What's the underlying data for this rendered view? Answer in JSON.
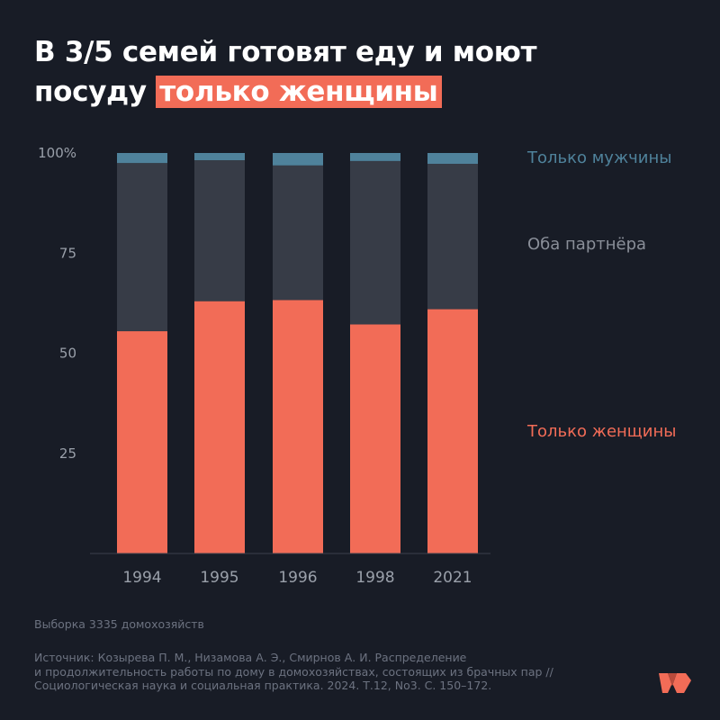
{
  "title": {
    "line1": "В 3/5 семей готовят еду и моют",
    "line2_prefix": "посуду ",
    "highlight": "только женщины"
  },
  "chart_data": {
    "type": "bar",
    "stacked": true,
    "categories": [
      "1994",
      "1995",
      "1996",
      "1998",
      "2021"
    ],
    "series": [
      {
        "name": "Только женщины",
        "color": "#f26c57",
        "values": [
          55.5,
          63,
          63.3,
          57.2,
          61
        ]
      },
      {
        "name": "Оба партнёра",
        "color": "#373c47",
        "values": [
          42,
          35.2,
          33.6,
          40.8,
          36.3
        ]
      },
      {
        "name": "Только мужчины",
        "color": "#4f829b",
        "values": [
          2.5,
          1.8,
          3.1,
          2,
          2.7
        ]
      }
    ],
    "yticks": [
      "25",
      "50",
      "75",
      "100%"
    ],
    "ylim": [
      0,
      100
    ],
    "grid": false,
    "legend_position": "right"
  },
  "footnotes": {
    "sample": "Выборка 3335 домохозяйств",
    "source_lines": [
      "Источник: Козырева П. М., Низамова А. Э., Смирнов А. И. Распределение",
      "и продолжительность работы по дому в домохозяйствах, состоящих из брачных пар //",
      "Социологическая наука и социальная практика. 2024. Т.12, No3. С. 150–172."
    ]
  },
  "logo": {
    "name": "brand-logo-icon",
    "color": "#f26c57"
  }
}
